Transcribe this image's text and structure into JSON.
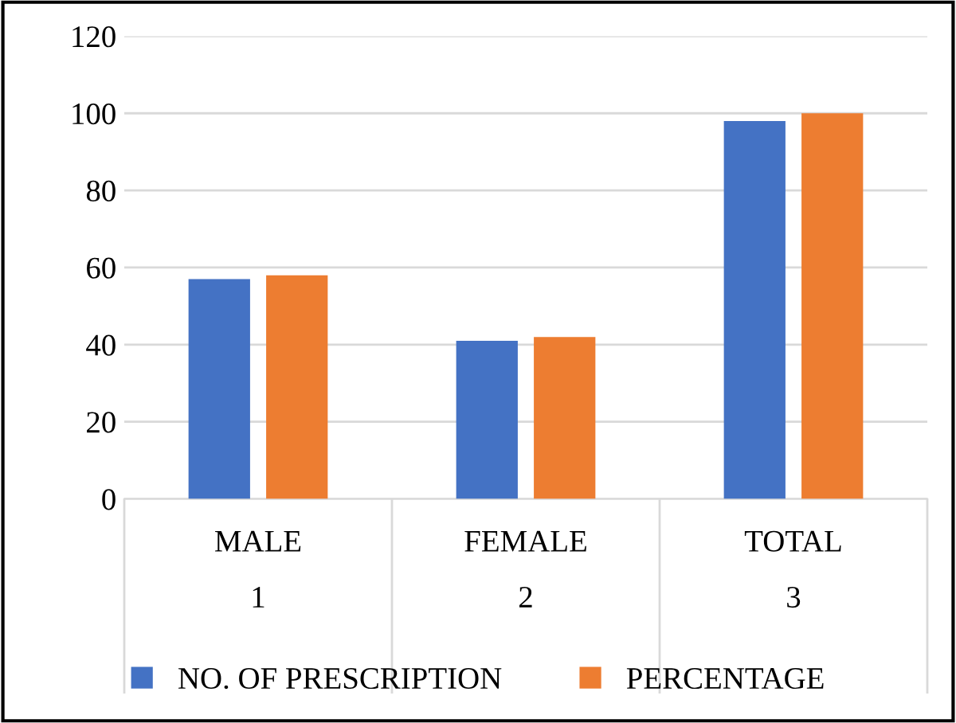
{
  "chart_data": {
    "type": "bar",
    "categories": [
      "MALE\n1",
      "FEMALE\n2",
      "TOTAL\n3"
    ],
    "series": [
      {
        "name": "NO. OF PRESCRIPTION",
        "color": "#4472c4",
        "values": [
          57,
          41,
          98
        ]
      },
      {
        "name": "PERCENTAGE",
        "color": "#ed7d31",
        "values": [
          58,
          42,
          100
        ]
      }
    ],
    "ylim": [
      0,
      120
    ],
    "yticks": [
      0,
      20,
      40,
      60,
      80,
      100,
      120
    ],
    "grid": "y",
    "legend": "bottom"
  }
}
